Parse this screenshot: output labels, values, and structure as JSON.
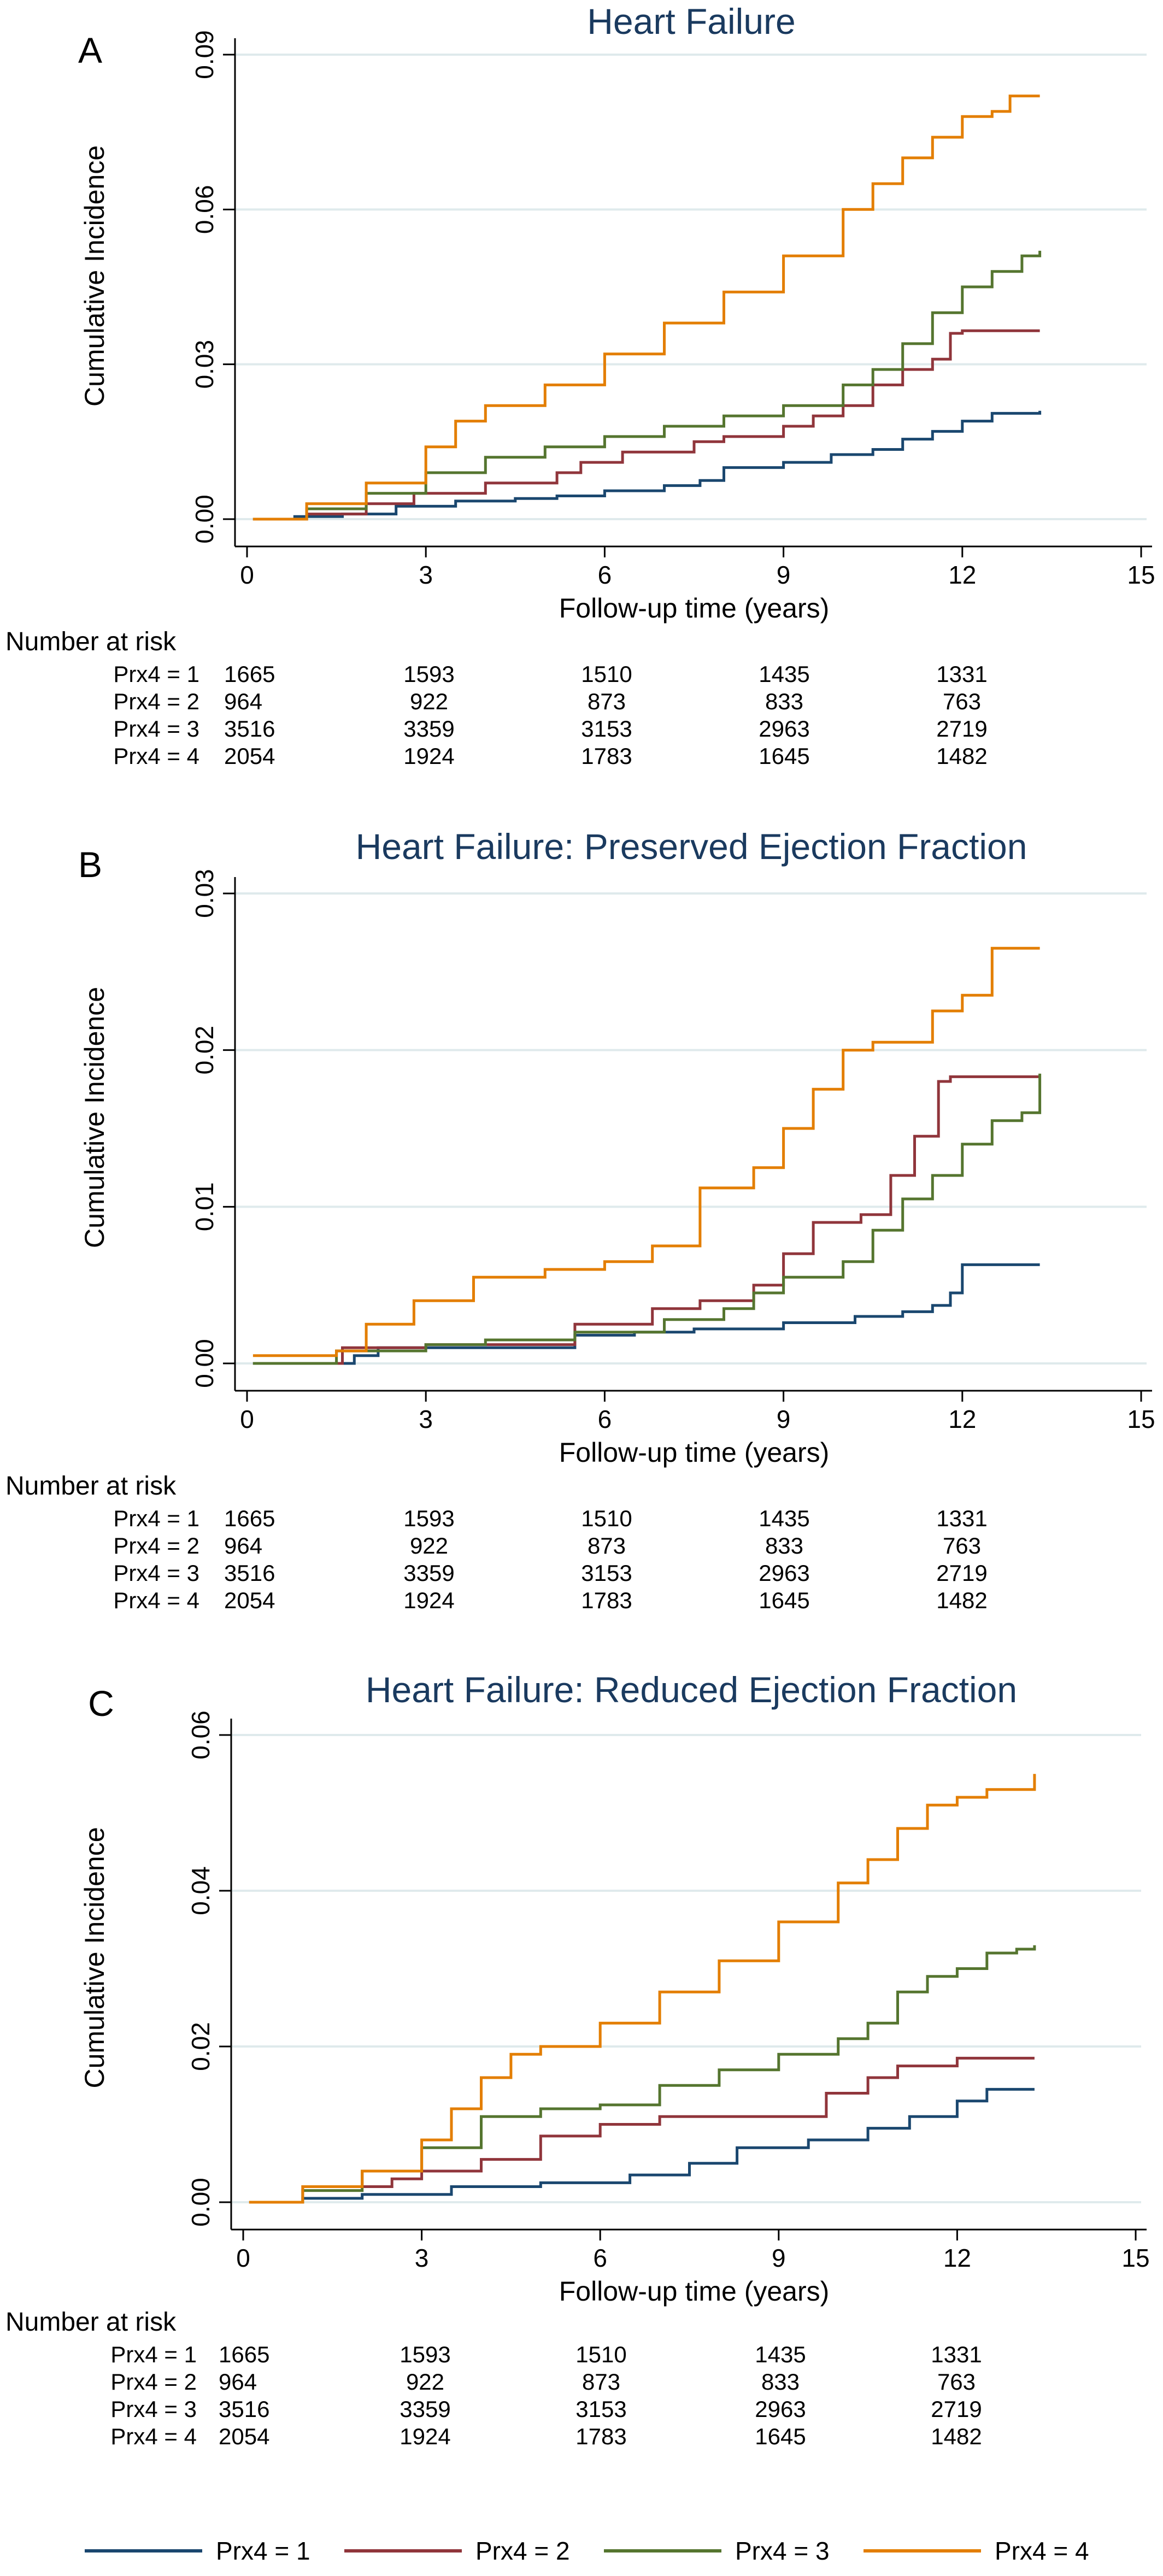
{
  "legend": {
    "position": "bottom",
    "items": [
      {
        "label": "Prx4 = 1",
        "color": "#1a476f"
      },
      {
        "label": "Prx4 = 2",
        "color": "#90353b"
      },
      {
        "label": "Prx4 = 3",
        "color": "#55752f"
      },
      {
        "label": "Prx4 = 4",
        "color": "#e37e00"
      }
    ]
  },
  "chart_data": [
    {
      "panel": "A",
      "type": "line",
      "title": "Heart Failure",
      "xlabel": "Follow-up time (years)",
      "ylabel": "Cumulative Incidence",
      "xlim": [
        0,
        15
      ],
      "ylim": [
        0,
        0.09
      ],
      "xticks": [
        "0",
        "3",
        "6",
        "9",
        "12",
        "15"
      ],
      "yticks": [
        "0.00",
        "0.03",
        "0.06",
        "0.09"
      ],
      "grid": true,
      "series": [
        {
          "name": "Prx4 = 1",
          "color": "#1a476f",
          "x": [
            0.2,
            0.8,
            1.6,
            2.5,
            3.5,
            4.5,
            5.2,
            6.0,
            7.0,
            7.6,
            8.0,
            9.0,
            9.8,
            10.5,
            11.0,
            11.5,
            12.0,
            12.5,
            13.3
          ],
          "y": [
            0.0,
            0.0005,
            0.001,
            0.0025,
            0.0035,
            0.004,
            0.0045,
            0.0055,
            0.0065,
            0.0075,
            0.01,
            0.011,
            0.0125,
            0.0135,
            0.0155,
            0.017,
            0.019,
            0.0205,
            0.021
          ]
        },
        {
          "name": "Prx4 = 2",
          "color": "#90353b",
          "x": [
            0.1,
            1.0,
            2.0,
            2.8,
            4.0,
            5.2,
            5.6,
            6.3,
            7.5,
            8.0,
            9.0,
            9.5,
            10.0,
            10.5,
            11.0,
            11.5,
            11.8,
            12.0,
            13.3
          ],
          "y": [
            0.0,
            0.001,
            0.003,
            0.005,
            0.007,
            0.009,
            0.011,
            0.013,
            0.015,
            0.016,
            0.018,
            0.02,
            0.022,
            0.026,
            0.029,
            0.031,
            0.036,
            0.0365,
            0.0365
          ]
        },
        {
          "name": "Prx4 = 3",
          "color": "#55752f",
          "x": [
            0.1,
            1.0,
            2.0,
            3.0,
            4.0,
            5.0,
            6.0,
            7.0,
            8.0,
            9.0,
            10.0,
            10.5,
            11.0,
            11.5,
            12.0,
            12.5,
            13.0,
            13.3
          ],
          "y": [
            0.0,
            0.002,
            0.005,
            0.009,
            0.012,
            0.014,
            0.016,
            0.018,
            0.02,
            0.022,
            0.026,
            0.029,
            0.034,
            0.04,
            0.045,
            0.048,
            0.051,
            0.052
          ]
        },
        {
          "name": "Prx4 = 4",
          "color": "#e37e00",
          "x": [
            0.1,
            1.0,
            2.0,
            3.0,
            3.5,
            4.0,
            5.0,
            6.0,
            7.0,
            8.0,
            9.0,
            10.0,
            10.5,
            11.0,
            11.5,
            12.0,
            12.5,
            12.8,
            13.3
          ],
          "y": [
            0.0,
            0.003,
            0.007,
            0.014,
            0.019,
            0.022,
            0.026,
            0.032,
            0.038,
            0.044,
            0.051,
            0.06,
            0.065,
            0.07,
            0.074,
            0.078,
            0.079,
            0.082,
            0.082
          ]
        }
      ]
    },
    {
      "panel": "B",
      "type": "line",
      "title": "Heart Failure: Preserved Ejection Fraction",
      "xlabel": "Follow-up time (years)",
      "ylabel": "Cumulative Incidence",
      "xlim": [
        0,
        15
      ],
      "ylim": [
        0,
        0.03
      ],
      "xticks": [
        "0",
        "3",
        "6",
        "9",
        "12",
        "15"
      ],
      "yticks": [
        "0.00",
        "0.01",
        "0.02",
        "0.03"
      ],
      "grid": true,
      "series": [
        {
          "name": "Prx4 = 1",
          "color": "#1a476f",
          "x": [
            0.1,
            1.8,
            2.2,
            5.5,
            6.5,
            7.5,
            9.0,
            10.2,
            11.0,
            11.5,
            11.8,
            12.0,
            13.3
          ],
          "y": [
            0.0,
            0.0005,
            0.001,
            0.0018,
            0.002,
            0.0022,
            0.0026,
            0.003,
            0.0033,
            0.0037,
            0.0045,
            0.0063,
            0.0063
          ]
        },
        {
          "name": "Prx4 = 2",
          "color": "#90353b",
          "x": [
            0.1,
            1.6,
            3.0,
            5.5,
            6.8,
            7.6,
            8.5,
            9.0,
            9.5,
            10.3,
            10.8,
            11.2,
            11.6,
            11.8,
            13.3
          ],
          "y": [
            0.0,
            0.001,
            0.0012,
            0.0025,
            0.0035,
            0.004,
            0.005,
            0.007,
            0.009,
            0.0095,
            0.012,
            0.0145,
            0.018,
            0.0183,
            0.0183
          ]
        },
        {
          "name": "Prx4 = 3",
          "color": "#55752f",
          "x": [
            0.1,
            1.5,
            3.0,
            4.0,
            5.5,
            7.0,
            8.0,
            8.5,
            9.0,
            10.0,
            10.5,
            11.0,
            11.5,
            12.0,
            12.5,
            13.0,
            13.3
          ],
          "y": [
            0.0,
            0.0008,
            0.0012,
            0.0015,
            0.002,
            0.0028,
            0.0035,
            0.0045,
            0.0055,
            0.0065,
            0.0085,
            0.0105,
            0.012,
            0.014,
            0.0155,
            0.016,
            0.0185
          ]
        },
        {
          "name": "Prx4 = 4",
          "color": "#e37e00",
          "x": [
            0.1,
            1.5,
            2.0,
            2.8,
            3.8,
            5.0,
            6.0,
            6.8,
            7.6,
            8.5,
            9.0,
            9.5,
            10.0,
            10.5,
            11.0,
            11.5,
            12.0,
            12.5,
            13.3
          ],
          "y": [
            0.0005,
            0.0008,
            0.0025,
            0.004,
            0.0055,
            0.006,
            0.0065,
            0.0075,
            0.0112,
            0.0125,
            0.015,
            0.0175,
            0.02,
            0.0205,
            0.0205,
            0.0225,
            0.0235,
            0.0265,
            0.0265
          ]
        }
      ]
    },
    {
      "panel": "C",
      "type": "line",
      "title": "Heart Failure: Reduced Ejection Fraction",
      "xlabel": "Follow-up time (years)",
      "ylabel": "Cumulative Incidence",
      "xlim": [
        0,
        15
      ],
      "ylim": [
        0,
        0.06
      ],
      "xticks": [
        "0",
        "3",
        "6",
        "9",
        "12",
        "15"
      ],
      "yticks": [
        "0.00",
        "0.02",
        "0.04",
        "0.06"
      ],
      "grid": true,
      "series": [
        {
          "name": "Prx4 = 1",
          "color": "#1a476f",
          "x": [
            0.2,
            1.0,
            2.0,
            3.5,
            5.0,
            6.5,
            7.5,
            8.3,
            9.5,
            10.5,
            11.2,
            12.0,
            12.5,
            13.3
          ],
          "y": [
            0.0,
            0.0005,
            0.001,
            0.002,
            0.0025,
            0.0035,
            0.005,
            0.007,
            0.008,
            0.0095,
            0.011,
            0.013,
            0.0145,
            0.0145
          ]
        },
        {
          "name": "Prx4 = 2",
          "color": "#90353b",
          "x": [
            0.1,
            1.0,
            2.5,
            3.0,
            4.0,
            5.0,
            6.0,
            7.0,
            9.5,
            9.8,
            10.5,
            11.0,
            12.0,
            13.3
          ],
          "y": [
            0.0,
            0.002,
            0.003,
            0.004,
            0.0055,
            0.0085,
            0.01,
            0.011,
            0.011,
            0.014,
            0.016,
            0.0175,
            0.0185,
            0.0185
          ]
        },
        {
          "name": "Prx4 = 3",
          "color": "#55752f",
          "x": [
            0.1,
            1.0,
            2.0,
            3.0,
            4.0,
            5.0,
            6.0,
            7.0,
            8.0,
            9.0,
            10.0,
            10.5,
            11.0,
            11.5,
            12.0,
            12.5,
            13.0,
            13.3
          ],
          "y": [
            0.0,
            0.0015,
            0.004,
            0.007,
            0.011,
            0.012,
            0.0125,
            0.015,
            0.017,
            0.019,
            0.021,
            0.023,
            0.027,
            0.029,
            0.03,
            0.032,
            0.0325,
            0.033
          ]
        },
        {
          "name": "Prx4 = 4",
          "color": "#e37e00",
          "x": [
            0.1,
            1.0,
            2.0,
            3.0,
            3.5,
            4.0,
            4.5,
            5.0,
            6.0,
            7.0,
            8.0,
            9.0,
            10.0,
            10.5,
            11.0,
            11.5,
            12.0,
            12.5,
            13.0,
            13.3
          ],
          "y": [
            0.0,
            0.002,
            0.004,
            0.008,
            0.012,
            0.016,
            0.019,
            0.02,
            0.023,
            0.027,
            0.031,
            0.036,
            0.041,
            0.044,
            0.048,
            0.051,
            0.052,
            0.053,
            0.053,
            0.055
          ]
        }
      ]
    }
  ],
  "risk_tables": [
    {
      "panel": "A",
      "header": "Number at risk",
      "times": [
        0,
        3,
        6,
        9,
        12
      ],
      "rows": [
        {
          "label": "Prx4 = 1",
          "values": [
            "1665",
            "1593",
            "1510",
            "1435",
            "1331"
          ]
        },
        {
          "label": "Prx4 = 2",
          "values": [
            "964",
            "922",
            "873",
            "833",
            "763"
          ]
        },
        {
          "label": "Prx4 = 3",
          "values": [
            "3516",
            "3359",
            "3153",
            "2963",
            "2719"
          ]
        },
        {
          "label": "Prx4 = 4",
          "values": [
            "2054",
            "1924",
            "1783",
            "1645",
            "1482"
          ]
        }
      ]
    },
    {
      "panel": "B",
      "header": "Number at risk",
      "times": [
        0,
        3,
        6,
        9,
        12
      ],
      "rows": [
        {
          "label": "Prx4 = 1",
          "values": [
            "1665",
            "1593",
            "1510",
            "1435",
            "1331"
          ]
        },
        {
          "label": "Prx4 = 2",
          "values": [
            "964",
            "922",
            "873",
            "833",
            "763"
          ]
        },
        {
          "label": "Prx4 = 3",
          "values": [
            "3516",
            "3359",
            "3153",
            "2963",
            "2719"
          ]
        },
        {
          "label": "Prx4 = 4",
          "values": [
            "2054",
            "1924",
            "1783",
            "1645",
            "1482"
          ]
        }
      ]
    },
    {
      "panel": "C",
      "header": "Number at risk",
      "times": [
        0,
        3,
        6,
        9,
        12
      ],
      "rows": [
        {
          "label": "Prx4 = 1",
          "values": [
            "1665",
            "1593",
            "1510",
            "1435",
            "1331"
          ]
        },
        {
          "label": "Prx4 = 2",
          "values": [
            "964",
            "922",
            "873",
            "833",
            "763"
          ]
        },
        {
          "label": "Prx4 = 3",
          "values": [
            "3516",
            "3359",
            "3153",
            "2963",
            "2719"
          ]
        },
        {
          "label": "Prx4 = 4",
          "values": [
            "2054",
            "1924",
            "1783",
            "1645",
            "1482"
          ]
        }
      ]
    }
  ]
}
